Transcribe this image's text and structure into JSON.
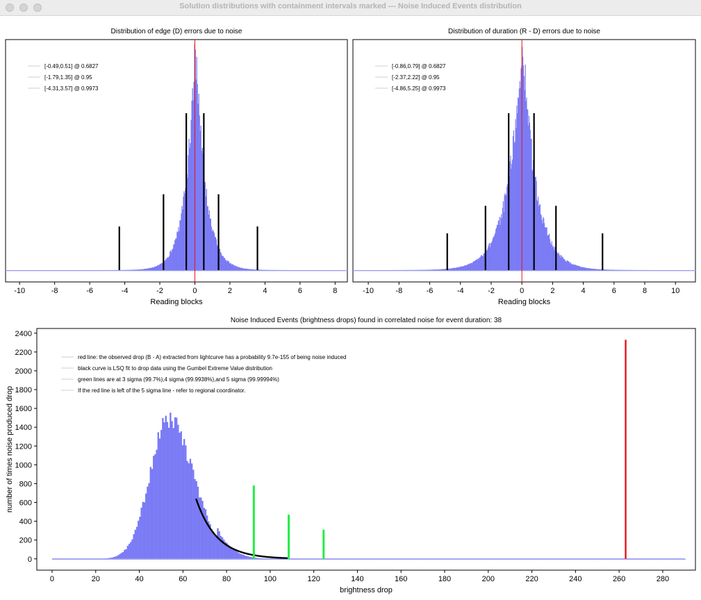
{
  "window": {
    "title": "Solution distributions with containment intervals marked --- Noise Induced Events distribution",
    "buttons": [
      "close",
      "minimize",
      "zoom"
    ]
  },
  "colors": {
    "histogram": "#7b7bf5",
    "observed_line": "#e4141b",
    "sigma_lines": "#22ee44",
    "interval_lines": "#000000",
    "fit_curve": "#000000",
    "frame": "#000000"
  },
  "chart_data": [
    {
      "type": "bar",
      "title": "Distribution of edge (D) errors due to noise",
      "xlabel": "Reading blocks",
      "ylabel": "",
      "xlim": [
        -10.8,
        8.7
      ],
      "x_ticks": [
        -10,
        -8,
        -6,
        -4,
        -2,
        0,
        2,
        4,
        6,
        8
      ],
      "grid": false,
      "legend_position": "top-left",
      "legend": [
        "[-0.49,0.51] @ 0.6827",
        "[-1.79,1.35] @ 0.95",
        "[-4.31,3.57] @ 0.9973"
      ],
      "histogram": {
        "center": 0.0,
        "peak": 1.0,
        "scale_left": 0.55,
        "scale_right": 0.57
      },
      "observed_value": 0.0,
      "interval_markers": [
        {
          "x": -0.49,
          "height": 0.6827
        },
        {
          "x": 0.51,
          "height": 0.6827
        },
        {
          "x": -1.79,
          "height": 0.33
        },
        {
          "x": 1.35,
          "height": 0.33
        },
        {
          "x": -4.31,
          "height": 0.19
        },
        {
          "x": 3.57,
          "height": 0.19
        }
      ]
    },
    {
      "type": "bar",
      "title": "Distribution of duration (R - D) errors due to noise",
      "xlabel": "Reading blocks",
      "ylabel": "",
      "xlim": [
        -11.0,
        11.3
      ],
      "x_ticks": [
        -10,
        -8,
        -6,
        -4,
        -2,
        0,
        2,
        4,
        6,
        8,
        10
      ],
      "grid": false,
      "legend_position": "top-left",
      "legend": [
        "[-0.86,0.79] @ 0.6827",
        "[-2.37,2.22] @ 0.95",
        "[-4.86,5.25] @ 0.9973"
      ],
      "histogram": {
        "center": 0.0,
        "peak": 1.0,
        "scale_left": 0.95,
        "scale_right": 0.9
      },
      "observed_value": 0.0,
      "interval_markers": [
        {
          "x": -0.86,
          "height": 0.6827
        },
        {
          "x": 0.79,
          "height": 0.6827
        },
        {
          "x": -2.37,
          "height": 0.28
        },
        {
          "x": 2.22,
          "height": 0.28
        },
        {
          "x": -4.86,
          "height": 0.16
        },
        {
          "x": 5.25,
          "height": 0.16
        }
      ]
    },
    {
      "type": "bar",
      "title": "Noise Induced Events (brightness drops) found in correlated noise for event duration: 38",
      "xlabel": "brightness drop",
      "ylabel": "number of times noise produced drop",
      "xlim": [
        -7,
        295
      ],
      "ylim": [
        -120,
        2450
      ],
      "x_ticks": [
        0,
        20,
        40,
        60,
        80,
        100,
        120,
        140,
        160,
        180,
        200,
        220,
        240,
        260,
        280
      ],
      "y_ticks": [
        0,
        200,
        400,
        600,
        800,
        1000,
        1200,
        1400,
        1600,
        1800,
        2000,
        2200,
        2400
      ],
      "grid": false,
      "legend_position": "top-left",
      "legend": [
        "red line: the observed drop (B - A) extracted from lightcurve has a probability 9.7e-155 of being noise induced",
        "black curve is LSQ fit to drop data using the Gumbel Extreme Value distribution",
        "green lines are at 3 sigma (99.7%),4 sigma (99.9938%),and 5 sigma (99.99994%)",
        "If the red line is left of the 5 sigma line - refer to regional coordinator."
      ],
      "histogram": {
        "mode": 53,
        "peak": 1480,
        "scale_left": 8.5,
        "scale_right": 11.5,
        "x_range": [
          0,
          290
        ]
      },
      "fit_curve": {
        "x_start": 66,
        "x_end": 108
      },
      "sigma_lines": [
        {
          "label": "3 sigma",
          "x": 92.5,
          "height": 780
        },
        {
          "label": "4 sigma",
          "x": 108.5,
          "height": 470
        },
        {
          "label": "5 sigma",
          "x": 124.5,
          "height": 310
        }
      ],
      "observed_line": {
        "x": 263,
        "height": 2330
      }
    }
  ]
}
